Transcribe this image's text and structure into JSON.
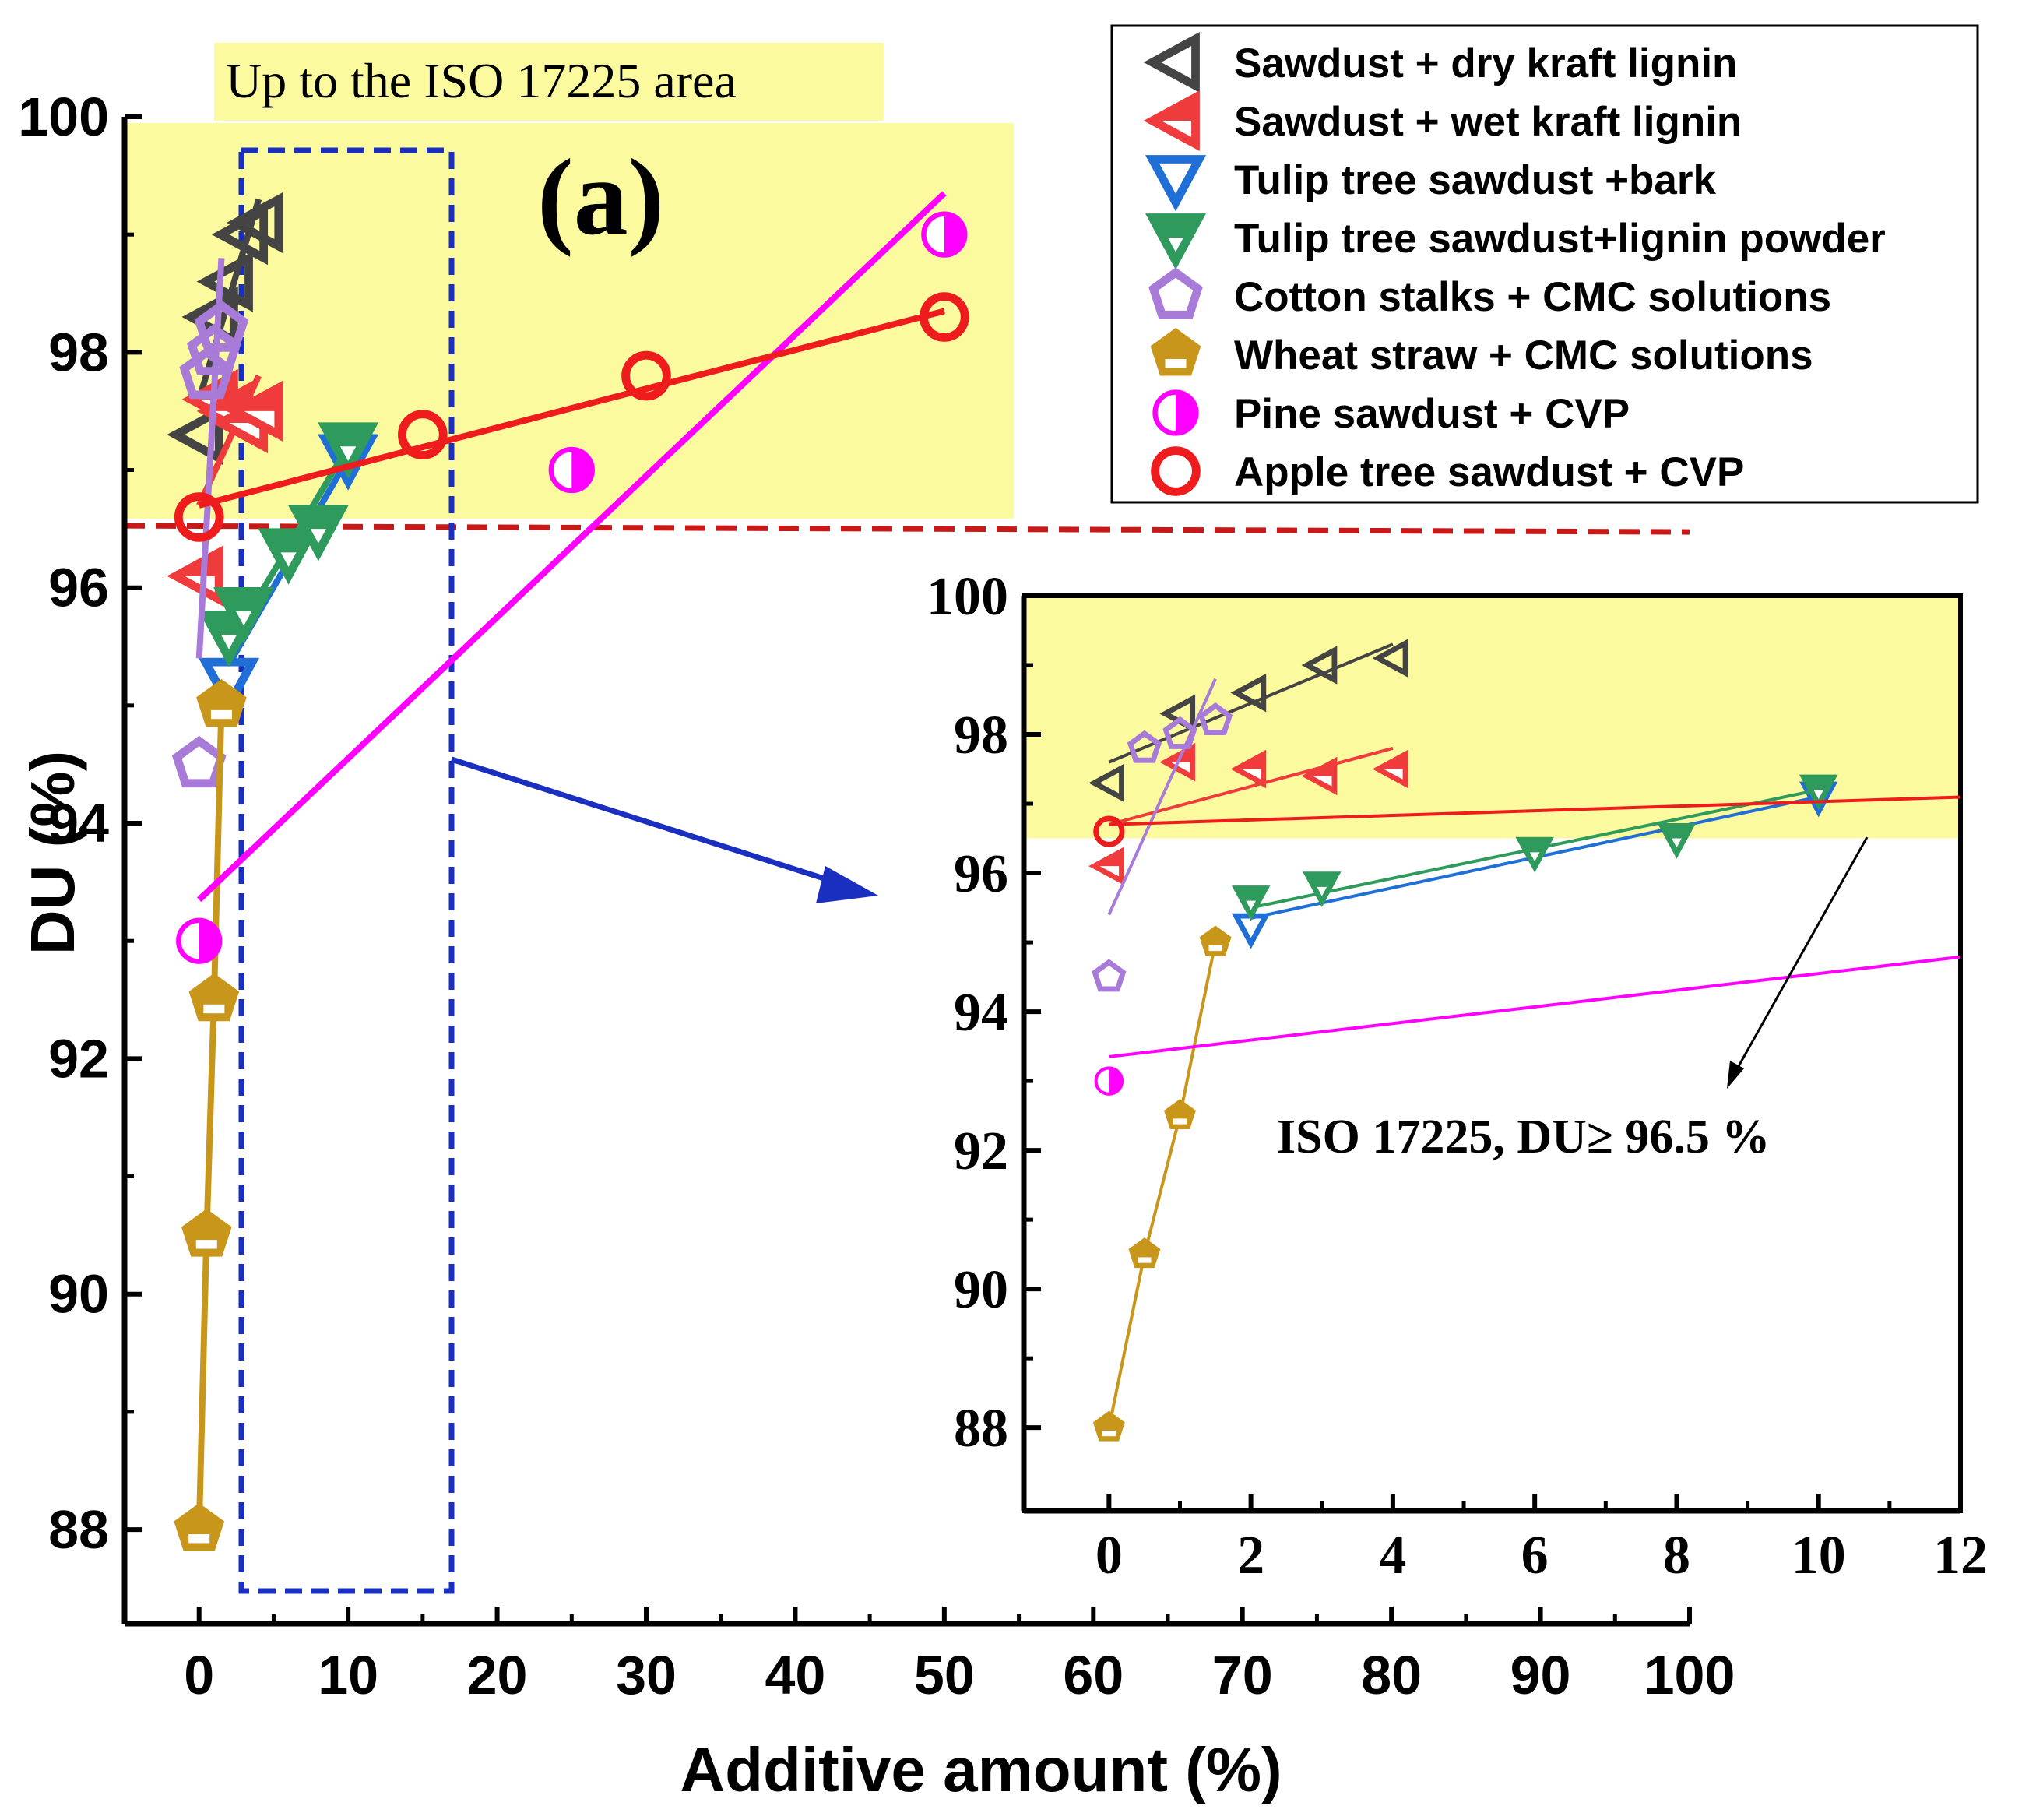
{
  "chart_data": {
    "type": "scatter",
    "panel_label": "(a)",
    "xlabel": "Additive amount (%)",
    "ylabel": "DU (%)",
    "xlim": [
      -5,
      100
    ],
    "ylim": [
      87.2,
      100
    ],
    "x_ticks": [
      "0",
      "10",
      "20",
      "30",
      "40",
      "50",
      "60",
      "70",
      "80",
      "90",
      "100"
    ],
    "y_ticks": [
      "88",
      "90",
      "92",
      "94",
      "96",
      "98",
      "100"
    ],
    "highlight_label": "Up to the ISO 17225 area",
    "threshold": {
      "value": 96.5,
      "label": "ISO 17225, DU≥ 96.5 %"
    },
    "series": [
      {
        "name": "Sawdust + dry kraft lignin",
        "marker": "triangle-left-open",
        "color": "#444444",
        "x": [
          0,
          1,
          2,
          3,
          4
        ],
        "y": [
          97.3,
          98.3,
          98.6,
          99.0,
          99.1
        ],
        "fit": {
          "x": [
            0,
            4
          ],
          "y": [
            97.6,
            99.3
          ]
        }
      },
      {
        "name": "Sawdust + wet kraft lignin",
        "marker": "triangle-left-half",
        "color": "#ef3b3b",
        "x": [
          0,
          1,
          2,
          3,
          4
        ],
        "y": [
          96.1,
          97.6,
          97.5,
          97.4,
          97.5
        ],
        "fit": {
          "x": [
            0,
            4
          ],
          "y": [
            96.7,
            97.8
          ]
        }
      },
      {
        "name": "Tulip tree sawdust +bark",
        "marker": "triangle-down-open",
        "color": "#1f6fd6",
        "x": [
          2,
          10
        ],
        "y": [
          95.2,
          97.1
        ],
        "fit": {
          "x": [
            2,
            10
          ],
          "y": [
            95.35,
            97.1
          ]
        }
      },
      {
        "name": "Tulip tree sawdust+lignin powder",
        "marker": "triangle-down-half",
        "color": "#2e9a5c",
        "x": [
          2,
          3,
          6,
          8,
          10
        ],
        "y": [
          95.6,
          95.8,
          96.3,
          96.5,
          97.2
        ],
        "fit": {
          "x": [
            2,
            10
          ],
          "y": [
            95.5,
            97.2
          ]
        }
      },
      {
        "name": "Cotton stalks + CMC solutions",
        "marker": "pentagon-open",
        "color": "#a87bd8",
        "x": [
          0,
          0.5,
          1,
          1.5
        ],
        "y": [
          94.5,
          97.8,
          98.0,
          98.2
        ],
        "fit": {
          "x": [
            0,
            1.5
          ],
          "y": [
            95.4,
            98.8
          ]
        }
      },
      {
        "name": "Wheat straw + CMC solutions",
        "marker": "pentagon-half",
        "color": "#c8961a",
        "x": [
          0,
          0.5,
          1,
          1.5
        ],
        "y": [
          88.0,
          90.5,
          92.5,
          95.0
        ],
        "fit": {
          "x": [
            0,
            0.5,
            1,
            1.5
          ],
          "y": [
            88.0,
            90.5,
            92.5,
            95.0
          ]
        }
      },
      {
        "name": "Pine sawdust + CVP",
        "marker": "circle-half",
        "color": "#ff00ff",
        "x": [
          0,
          25,
          50
        ],
        "y": [
          93.0,
          97.0,
          99.0
        ],
        "fit": {
          "x": [
            0,
            50
          ],
          "y": [
            93.35,
            99.35
          ]
        }
      },
      {
        "name": "Apple tree sawdust + CVP",
        "marker": "circle-open",
        "color": "#ee1c1c",
        "x": [
          0,
          15,
          30,
          50
        ],
        "y": [
          96.6,
          97.3,
          97.8,
          98.3
        ],
        "fit": {
          "x": [
            0,
            50
          ],
          "y": [
            96.7,
            98.35
          ]
        }
      }
    ],
    "inset": {
      "xlim": [
        -1.2,
        12
      ],
      "ylim": [
        86.8,
        100
      ],
      "x_ticks": [
        "0",
        "2",
        "4",
        "6",
        "8",
        "10",
        "12"
      ],
      "y_ticks": [
        "88",
        "90",
        "92",
        "94",
        "96",
        "98",
        "100"
      ]
    }
  }
}
